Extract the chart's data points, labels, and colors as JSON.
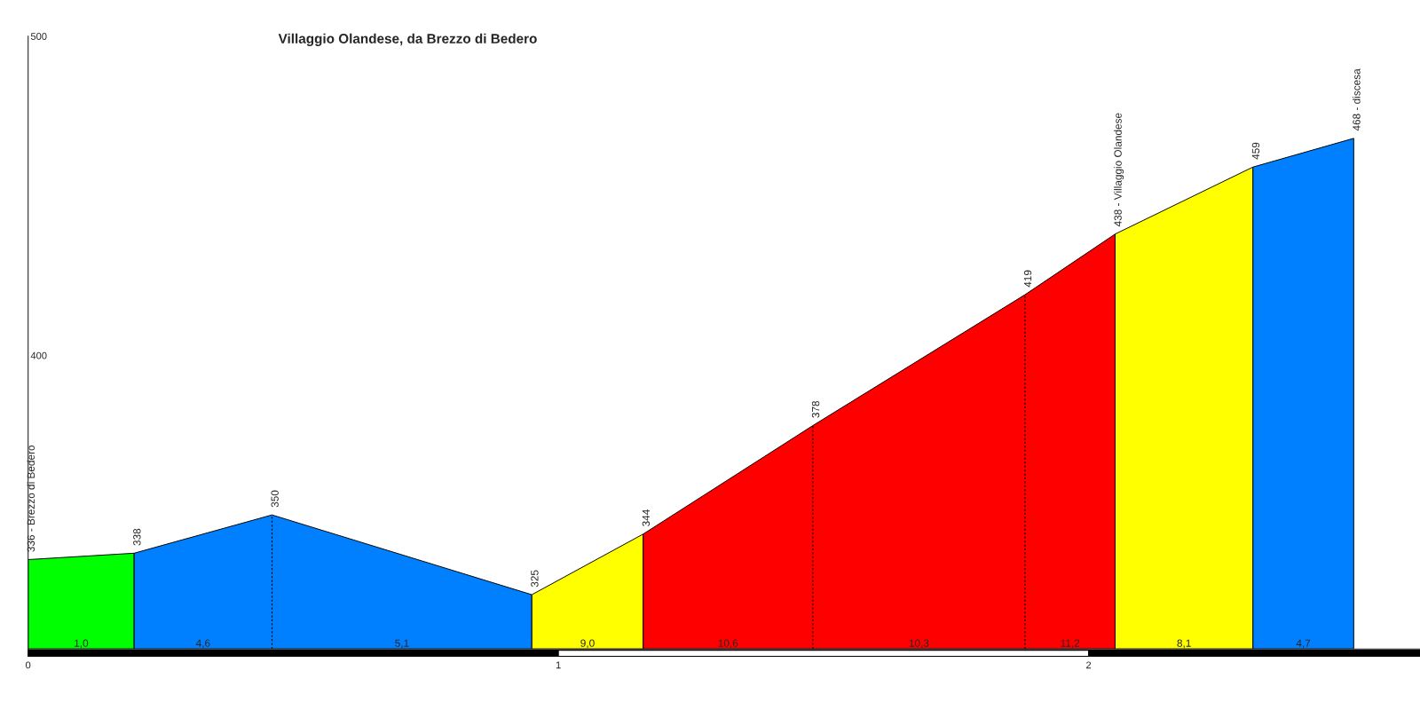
{
  "chart_data": {
    "type": "area",
    "title": "Villaggio Olandese, da Brezzo di Bedero",
    "series": [
      {
        "color": "#00ff00",
        "x": [
          0,
          0.2
        ],
        "values": [
          336,
          338
        ],
        "value_labels": [
          "336 - Brezzo di Bedero",
          null
        ]
      },
      {
        "color": "#0080ff",
        "x": [
          0.2,
          0.46,
          0.95
        ],
        "values": [
          338,
          350,
          325
        ],
        "value_labels": [
          "338",
          "350",
          null
        ]
      },
      {
        "color": "#ffff00",
        "x": [
          0.95,
          1.16
        ],
        "values": [
          325,
          344
        ],
        "value_labels": [
          "325",
          null
        ]
      },
      {
        "color": "#ff0000",
        "x": [
          1.16,
          1.48,
          1.88,
          2.05
        ],
        "values": [
          344,
          378,
          419,
          438
        ],
        "value_labels": [
          "344",
          "378",
          "419",
          null
        ]
      },
      {
        "color": "#ffff00",
        "x": [
          2.05,
          2.31
        ],
        "values": [
          438,
          459
        ],
        "value_labels": [
          "438 - Villaggio Olandese",
          null
        ]
      },
      {
        "color": "#0080ff",
        "x": [
          2.31,
          2.5
        ],
        "values": [
          459,
          468
        ],
        "value_labels": [
          "459",
          "468 - discesa"
        ]
      }
    ],
    "annotations": [
      "1,0",
      "4,6",
      "5,1",
      "9,0",
      "10,6",
      "10,3",
      "11,2",
      "8,1",
      "4,7"
    ],
    "xlim": [
      0,
      2.625
    ],
    "xticks": [
      0,
      1,
      2
    ],
    "ylim": [
      308,
      500
    ],
    "yticks": [
      400,
      500
    ]
  }
}
